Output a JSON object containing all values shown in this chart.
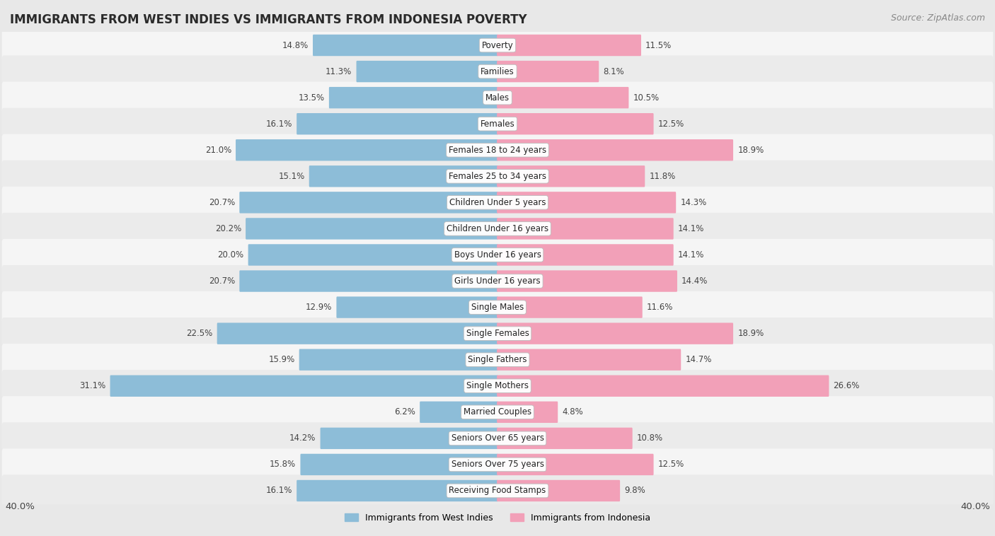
{
  "title": "IMMIGRANTS FROM WEST INDIES VS IMMIGRANTS FROM INDONESIA POVERTY",
  "source": "Source: ZipAtlas.com",
  "categories": [
    "Poverty",
    "Families",
    "Males",
    "Females",
    "Females 18 to 24 years",
    "Females 25 to 34 years",
    "Children Under 5 years",
    "Children Under 16 years",
    "Boys Under 16 years",
    "Girls Under 16 years",
    "Single Males",
    "Single Females",
    "Single Fathers",
    "Single Mothers",
    "Married Couples",
    "Seniors Over 65 years",
    "Seniors Over 75 years",
    "Receiving Food Stamps"
  ],
  "west_indies": [
    14.8,
    11.3,
    13.5,
    16.1,
    21.0,
    15.1,
    20.7,
    20.2,
    20.0,
    20.7,
    12.9,
    22.5,
    15.9,
    31.1,
    6.2,
    14.2,
    15.8,
    16.1
  ],
  "indonesia": [
    11.5,
    8.1,
    10.5,
    12.5,
    18.9,
    11.8,
    14.3,
    14.1,
    14.1,
    14.4,
    11.6,
    18.9,
    14.7,
    26.6,
    4.8,
    10.8,
    12.5,
    9.8
  ],
  "blue_color": "#8dbdd8",
  "pink_color": "#f2a0b8",
  "bg_color": "#e8e8e8",
  "row_bg_even": "#f5f5f5",
  "row_bg_odd": "#ebebeb",
  "max_value": 40.0,
  "legend_blue": "Immigrants from West Indies",
  "legend_pink": "Immigrants from Indonesia",
  "title_fontsize": 12,
  "source_fontsize": 9,
  "label_fontsize": 8.5,
  "value_fontsize": 8.5,
  "legend_fontsize": 9
}
